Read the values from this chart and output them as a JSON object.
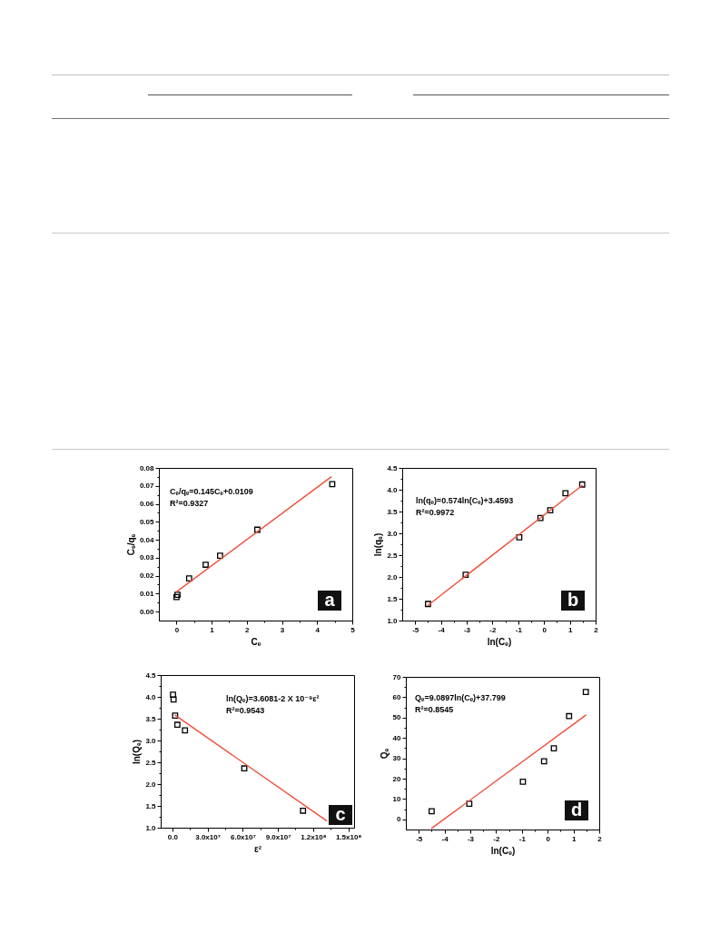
{
  "chart_data": [
    {
      "type": "scatter",
      "title": "a",
      "xlabel": "Cₑ",
      "ylabel": "Cₑ/qₑ",
      "annotations": [
        "Cₑ/qₑ=0.145Cₑ+0.0109",
        "R²=0.9327"
      ],
      "xlim": [
        -0.5,
        5
      ],
      "xticks": [
        0,
        {
          "value": 0.5,
          "label": null
        },
        1,
        {
          "value": 1.5,
          "label": null
        },
        2,
        {
          "value": 2.5,
          "label": null
        },
        3,
        {
          "value": 3.5,
          "label": null
        },
        4,
        {
          "value": 4.5,
          "label": null
        },
        5
      ],
      "ylim": [
        -0.005,
        0.08
      ],
      "yticks": [
        {
          "value": 0,
          "label": "0.00"
        },
        {
          "value": 0.005,
          "label": null
        },
        0.01,
        {
          "value": 0.015,
          "label": null
        },
        0.02,
        {
          "value": 0.025,
          "label": null
        },
        0.03,
        {
          "value": 0.035,
          "label": null
        },
        0.04,
        {
          "value": 0.045,
          "label": null
        },
        0.05,
        {
          "value": 0.055,
          "label": null
        },
        0.06,
        {
          "value": 0.065,
          "label": null
        },
        0.07,
        {
          "value": 0.075,
          "label": null
        },
        0.08
      ],
      "series": [
        {
          "color": "#000000",
          "marker": "square",
          "x": [
            0,
            0.03,
            0.36,
            0.83,
            1.24,
            2.3,
            4.43
          ],
          "values": [
            0.0081,
            0.0094,
            0.0185,
            0.0261,
            0.0311,
            0.0456,
            0.071
          ]
        },
        {
          "type": "line",
          "color": "#f04e3a",
          "x": [
            0,
            4.4
          ],
          "values": [
            0.011,
            0.075
          ]
        }
      ]
    },
    {
      "type": "scatter",
      "title": "b",
      "xlabel": "ln(Cₑ)",
      "ylabel": "ln(qₑ)",
      "annotations": [
        "ln(qₑ)=0.574ln(Cₑ)+3.4593",
        "R²=0.9972"
      ],
      "xlim": [
        -5.5,
        2
      ],
      "xticks": [
        -5,
        {
          "value": -4.5,
          "label": null
        },
        -4,
        {
          "value": -3.5,
          "label": null
        },
        -3,
        {
          "value": -2.5,
          "label": null
        },
        -2,
        {
          "value": -1.5,
          "label": null
        },
        -1,
        {
          "value": -0.5,
          "label": null
        },
        0,
        {
          "value": 0.5,
          "label": null
        },
        1,
        {
          "value": 1.5,
          "label": null
        },
        2
      ],
      "ylim": [
        1,
        4.5
      ],
      "yticks": [
        {
          "value": 1,
          "label": "1.0"
        },
        {
          "value": 1.25,
          "label": null
        },
        1.5,
        {
          "value": 1.75,
          "label": null
        },
        {
          "value": 2,
          "label": "2.0"
        },
        {
          "value": 2.25,
          "label": null
        },
        2.5,
        {
          "value": 2.75,
          "label": null
        },
        {
          "value": 3,
          "label": "3.0"
        },
        {
          "value": 3.25,
          "label": null
        },
        3.5,
        {
          "value": 3.75,
          "label": null
        },
        {
          "value": 4,
          "label": "4.0"
        },
        {
          "value": 4.25,
          "label": null
        },
        4.5
      ],
      "series": [
        {
          "color": "#000000",
          "marker": "square",
          "x": [
            -4.5,
            -3.04,
            -0.96,
            -0.14,
            0.24,
            0.83,
            1.48
          ],
          "values": [
            1.38,
            2.05,
            2.91,
            3.35,
            3.53,
            3.92,
            4.12
          ]
        },
        {
          "type": "line",
          "color": "#f04e3a",
          "x": [
            -4.5,
            1.48
          ],
          "values": [
            1.35,
            4.1
          ]
        }
      ]
    },
    {
      "type": "scatter",
      "title": "c",
      "xlabel": "ε²",
      "ylabel": "ln(Qₑ)",
      "annotations": [
        "ln(Qₑ)=3.6081-2 X 10⁻⁹ε²",
        "R²=0.9543"
      ],
      "xlim": [
        -10000000,
        155000000
      ],
      "xticks": [
        {
          "value": 0,
          "label": "0.0"
        },
        {
          "value": 15000000,
          "label": null
        },
        {
          "value": 30000000,
          "label": "3.0x10⁷"
        },
        {
          "value": 45000000,
          "label": null
        },
        {
          "value": 60000000,
          "label": "6.0x10⁷"
        },
        {
          "value": 75000000,
          "label": null
        },
        {
          "value": 90000000,
          "label": "9.0x10⁷"
        },
        {
          "value": 105000000,
          "label": null
        },
        {
          "value": 120000000,
          "label": "1.2x10⁸"
        },
        {
          "value": 135000000,
          "label": null
        },
        {
          "value": 150000000,
          "label": "1.5x10⁸"
        }
      ],
      "ylim": [
        1,
        4.5
      ],
      "yticks": [
        {
          "value": 1,
          "label": "1.0"
        },
        {
          "value": 1.25,
          "label": null
        },
        1.5,
        {
          "value": 1.75,
          "label": null
        },
        {
          "value": 2,
          "label": "2.0"
        },
        {
          "value": 2.25,
          "label": null
        },
        2.5,
        {
          "value": 2.75,
          "label": null
        },
        {
          "value": 3,
          "label": "3.0"
        },
        {
          "value": 3.25,
          "label": null
        },
        3.5,
        {
          "value": 3.75,
          "label": null
        },
        {
          "value": 4,
          "label": "4.0"
        },
        {
          "value": 4.25,
          "label": null
        },
        4.5
      ],
      "series": [
        {
          "color": "#000000",
          "marker": "square",
          "x": [
            500000,
            1000000,
            2300000,
            4200000,
            10700000,
            61300000,
            111400000
          ],
          "values": [
            4.05,
            3.94,
            3.57,
            3.36,
            3.23,
            2.36,
            1.39
          ]
        },
        {
          "type": "line",
          "color": "#f04e3a",
          "x": [
            2300000,
            131500000
          ],
          "values": [
            3.58,
            1.16
          ]
        }
      ]
    },
    {
      "type": "scatter",
      "title": "d",
      "xlabel": "ln(Cₑ)",
      "ylabel": "Qₑ",
      "annotations": [
        "Qₑ=9.0897ln(Cₑ)+37.799",
        "R²=0.8545"
      ],
      "xlim": [
        -5.5,
        2
      ],
      "xticks": [
        -5,
        {
          "value": -4.5,
          "label": null
        },
        -4,
        {
          "value": -3.5,
          "label": null
        },
        -3,
        {
          "value": -2.5,
          "label": null
        },
        -2,
        {
          "value": -1.5,
          "label": null
        },
        -1,
        {
          "value": -0.5,
          "label": null
        },
        0,
        {
          "value": 0.5,
          "label": null
        },
        1,
        {
          "value": 1.5,
          "label": null
        },
        2
      ],
      "ylim": [
        -5,
        70
      ],
      "yticks": [
        0,
        {
          "value": 5,
          "label": null
        },
        10,
        {
          "value": 15,
          "label": null
        },
        20,
        {
          "value": 25,
          "label": null
        },
        30,
        {
          "value": 35,
          "label": null
        },
        40,
        {
          "value": 45,
          "label": null
        },
        50,
        {
          "value": 55,
          "label": null
        },
        60,
        {
          "value": 65,
          "label": null
        },
        70
      ],
      "series": [
        {
          "color": "#000000",
          "marker": "square",
          "x": [
            -4.5,
            -3.04,
            -0.96,
            -0.14,
            0.24,
            0.83,
            1.48
          ],
          "values": [
            4.0,
            7.7,
            18.5,
            28.5,
            34.9,
            50.7,
            62.6
          ]
        },
        {
          "type": "line",
          "color": "#f04e3a",
          "x": [
            -4.5,
            1.48
          ],
          "values": [
            -4.4,
            51.2
          ]
        }
      ]
    }
  ]
}
